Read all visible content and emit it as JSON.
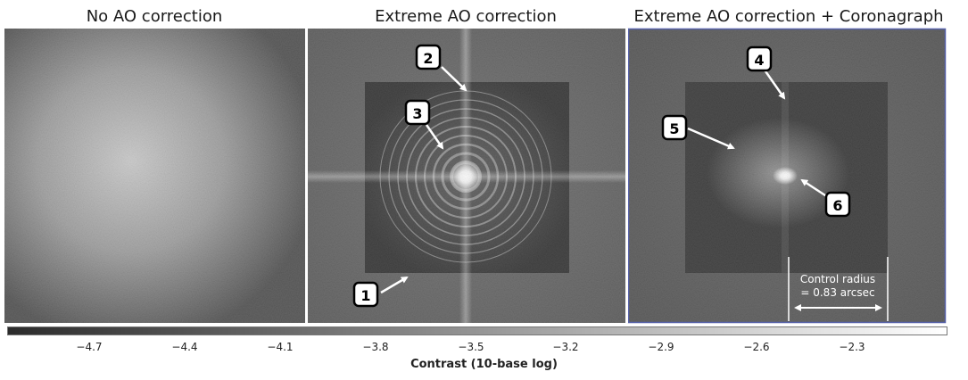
{
  "panels": [
    {
      "title": "No AO correction"
    },
    {
      "title": "Extreme AO correction"
    },
    {
      "title": "Extreme AO correction + Coronagraph"
    }
  ],
  "callouts": [
    "1",
    "2",
    "3",
    "4",
    "5",
    "6"
  ],
  "control_radius": {
    "line1": "Control radius",
    "line2": "= 0.83 arcsec"
  },
  "colorbar": {
    "label": "Contrast (10-base log)",
    "ticks": [
      "−4.7",
      "−4.4",
      "−4.1",
      "−3.8",
      "−3.5",
      "−3.2",
      "−2.9",
      "−2.6",
      "−2.3"
    ]
  }
}
